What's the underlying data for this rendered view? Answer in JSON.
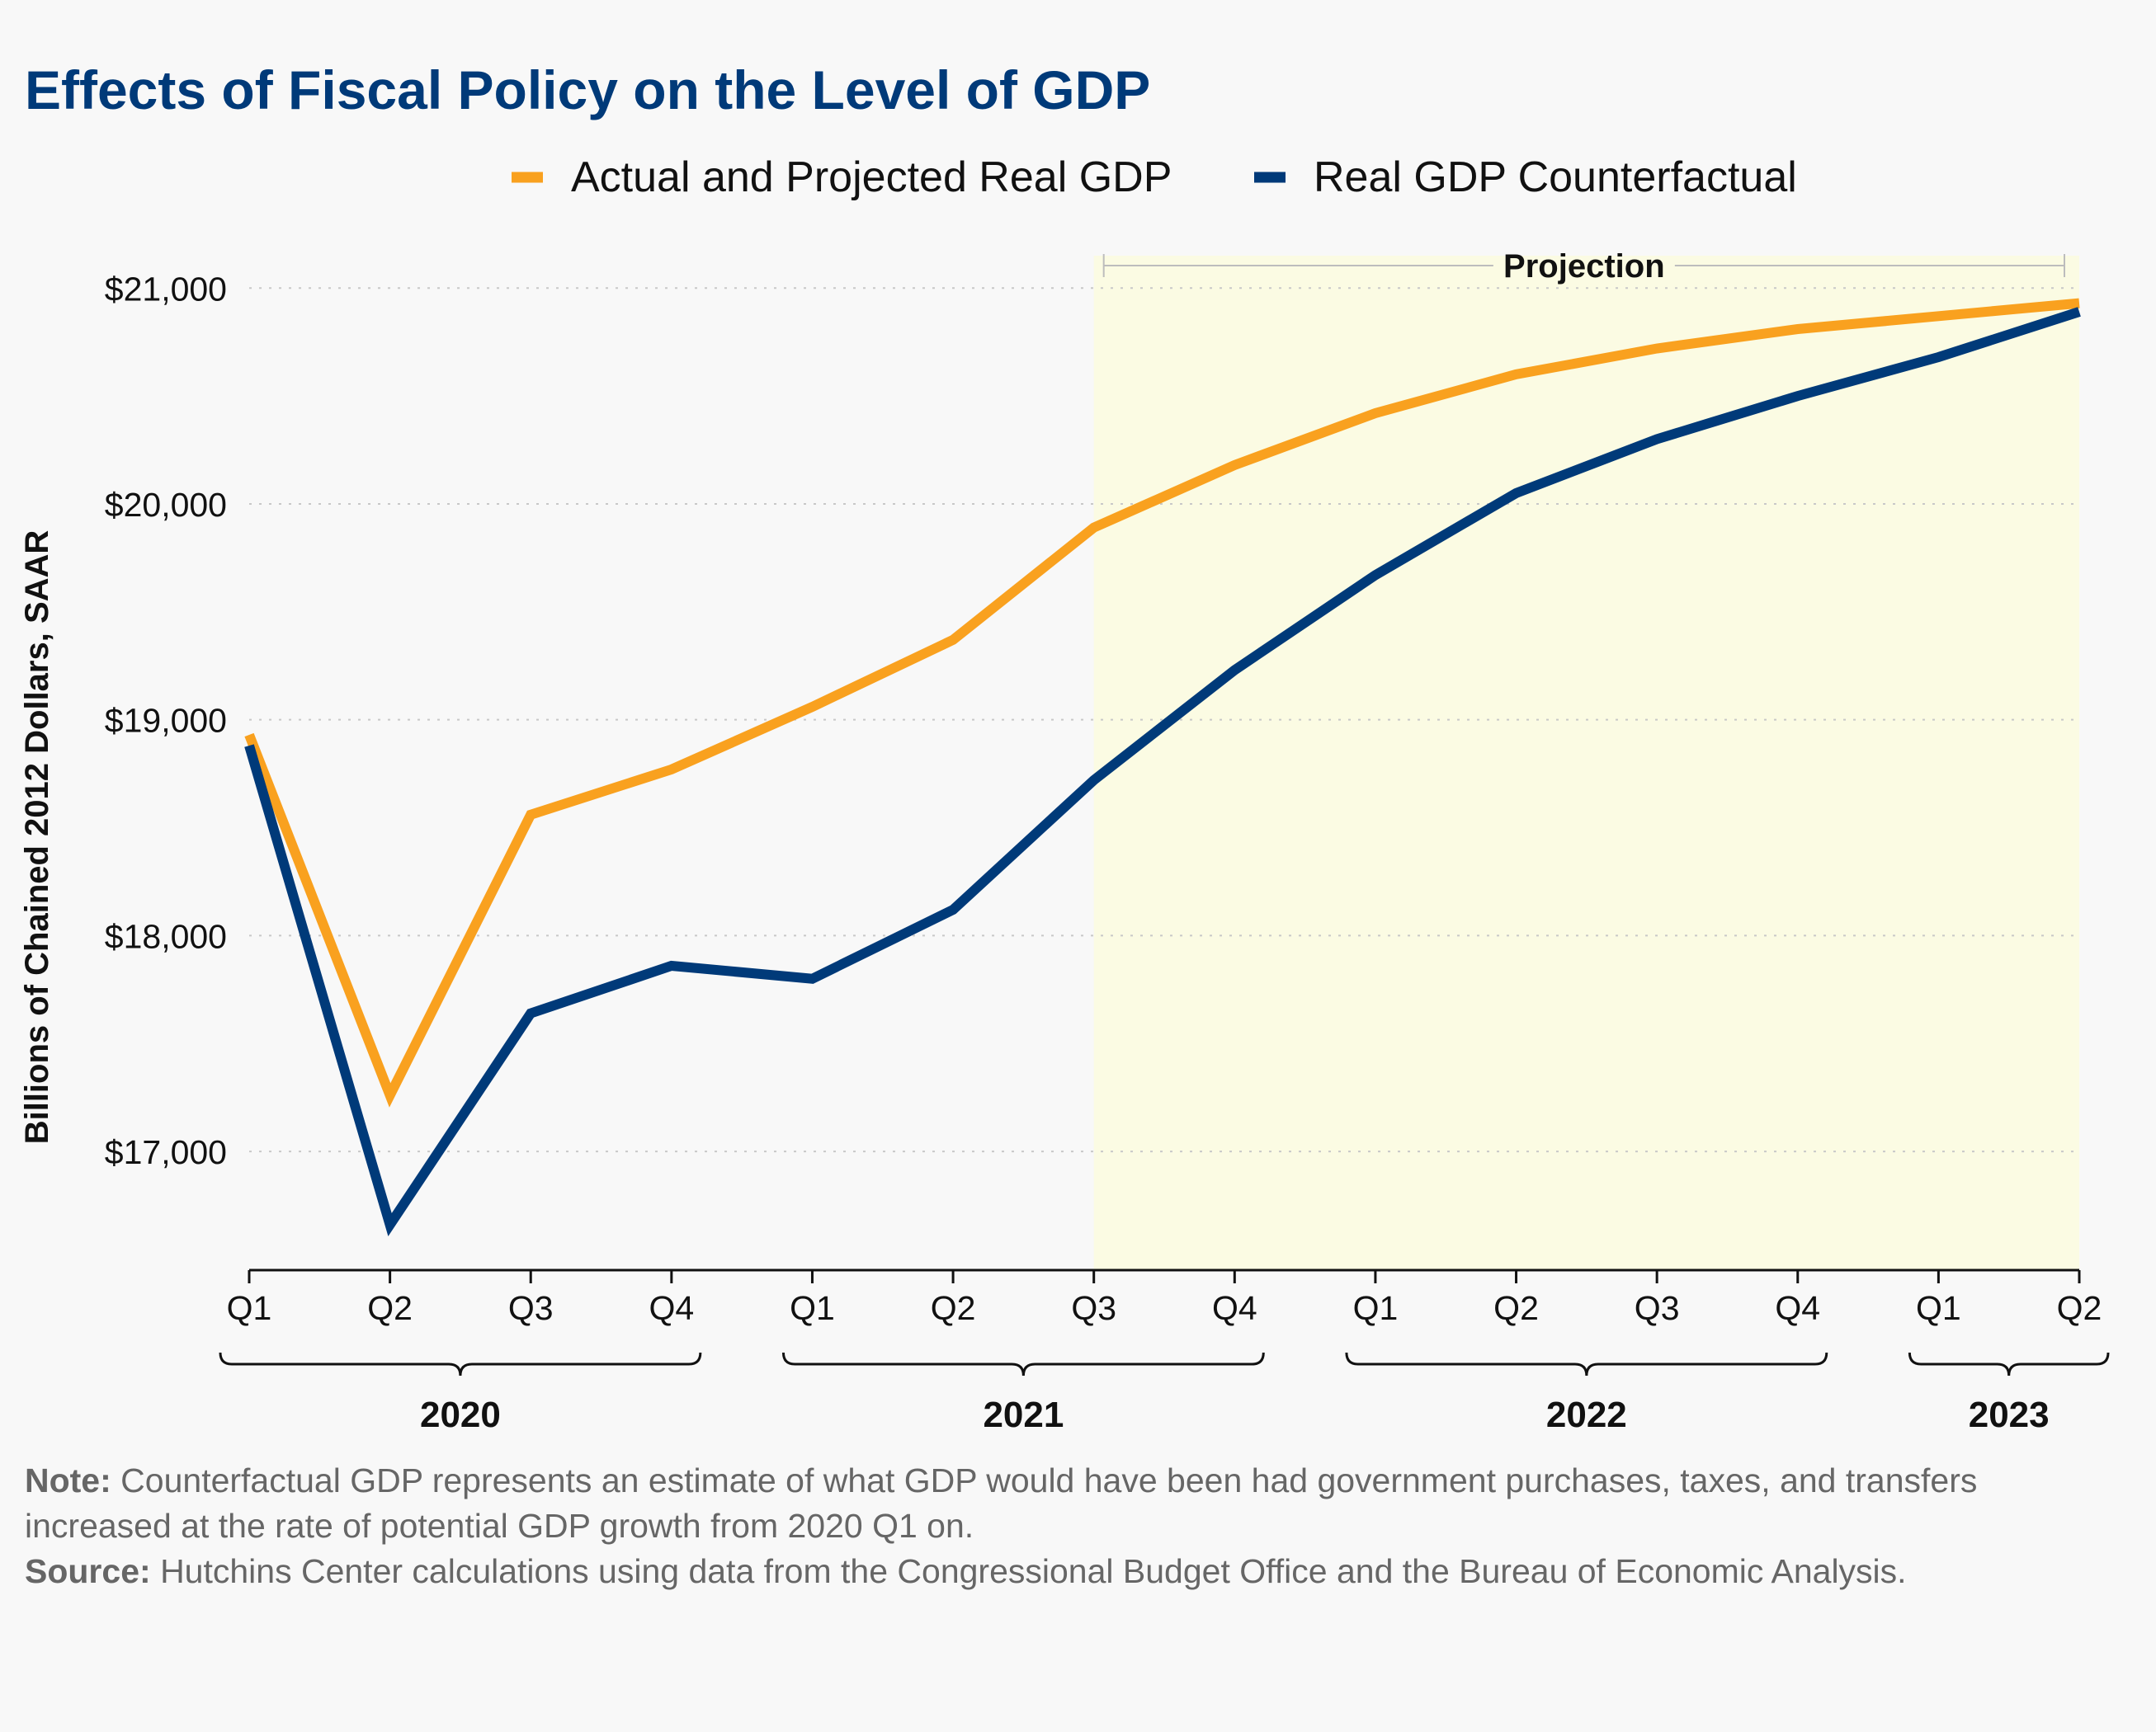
{
  "colors": {
    "actual": "#f9a11f",
    "counterfactual": "#003a79",
    "title": "#003a79",
    "projection_shade": "#fbfbe3",
    "grid": "#c8c8c8"
  },
  "notes": {
    "note_label": "Note:",
    "note_text": "Counterfactual GDP represents an estimate of what GDP would have been had government purchases, taxes, and transfers increased at the rate of potential GDP growth from 2020 Q1 on.",
    "source_label": "Source:",
    "source_text": "Hutchins Center calculations using data from the Congressional Budget Office and the Bureau of Economic Analysis."
  },
  "chart_data": {
    "type": "line",
    "title": "Effects of Fiscal Policy on the Level of GDP",
    "xlabel": "",
    "ylabel": "Billions of Chained 2012 Dollars, SAAR",
    "ylim": [
      16450,
      21150
    ],
    "yticks": [
      17000,
      18000,
      19000,
      20000,
      21000
    ],
    "ytick_labels": [
      "$17,000",
      "$18,000",
      "$19,000",
      "$20,000",
      "$21,000"
    ],
    "grid": "horizontal dotted",
    "legend_position": "top",
    "x": [
      "Q1",
      "Q2",
      "Q3",
      "Q4",
      "Q1",
      "Q2",
      "Q3",
      "Q4",
      "Q1",
      "Q2",
      "Q3",
      "Q4",
      "Q1",
      "Q2"
    ],
    "years": [
      {
        "label": "2020",
        "from": 0,
        "to": 3
      },
      {
        "label": "2021",
        "from": 4,
        "to": 7
      },
      {
        "label": "2022",
        "from": 8,
        "to": 11
      },
      {
        "label": "2023",
        "from": 12,
        "to": 13
      }
    ],
    "projection": {
      "label": "Projection",
      "start_index": 6,
      "end_index": 13
    },
    "series": [
      {
        "name": "Actual and Projected Real GDP",
        "color": "#f9a11f",
        "values": [
          18930,
          17260,
          18560,
          18770,
          19060,
          19370,
          19890,
          20180,
          20420,
          20600,
          20720,
          20810,
          20870,
          20930
        ]
      },
      {
        "name": "Real GDP Counterfactual",
        "color": "#003a79",
        "values": [
          18880,
          16660,
          17640,
          17860,
          17800,
          18120,
          18720,
          19230,
          19670,
          20050,
          20300,
          20500,
          20680,
          20890
        ]
      }
    ]
  }
}
